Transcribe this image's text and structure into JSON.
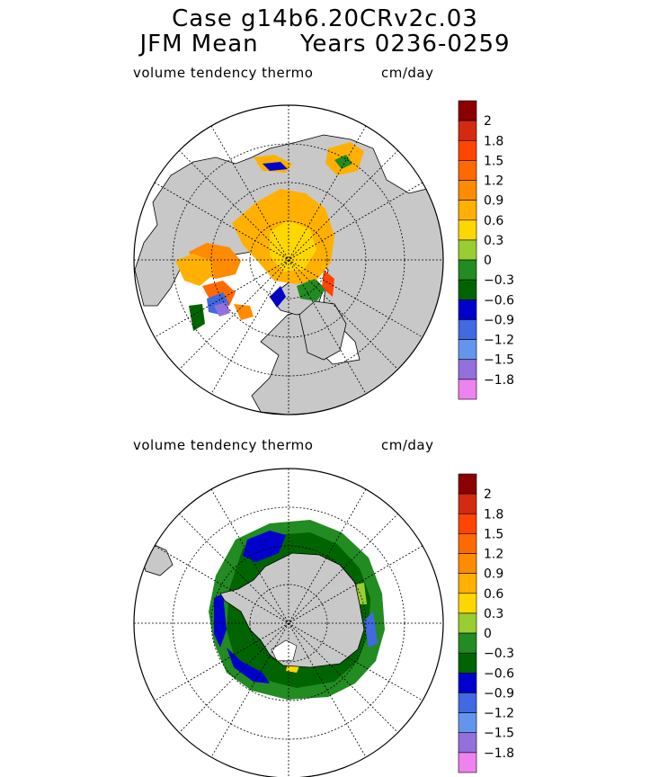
{
  "title_line1": "Case g14b6.20CRv2c.03",
  "title_line2": "JFM Mean     Years 0236-0259",
  "chart_data": [
    {
      "type": "heatmap",
      "projection": "north-polar-stereographic",
      "variable_label": "volume tendency thermo",
      "units": "cm/day",
      "colorbar": {
        "levels": [
          "2",
          "1.8",
          "1.5",
          "1.2",
          "0.9",
          "0.6",
          "0.3",
          "0",
          "−0.3",
          "−0.6",
          "−0.9",
          "−1.2",
          "−1.5",
          "−1.8"
        ],
        "colors": [
          "#8b0000",
          "#d42a0f",
          "#ff4500",
          "#ff6a00",
          "#ff8c00",
          "#ffb000",
          "#ffd700",
          "#9acd32",
          "#228b22",
          "#006400",
          "#0000cd",
          "#4169e1",
          "#6495ed",
          "#9370db",
          "#ee82ee"
        ]
      }
    },
    {
      "type": "heatmap",
      "projection": "south-polar-stereographic",
      "variable_label": "volume tendency thermo",
      "units": "cm/day",
      "colorbar": {
        "levels": [
          "2",
          "1.8",
          "1.5",
          "1.2",
          "0.9",
          "0.6",
          "0.3",
          "0",
          "−0.3",
          "−0.6",
          "−0.9",
          "−1.2",
          "−1.5",
          "−1.8"
        ],
        "colors": [
          "#8b0000",
          "#d42a0f",
          "#ff4500",
          "#ff6a00",
          "#ff8c00",
          "#ffb000",
          "#ffd700",
          "#9acd32",
          "#228b22",
          "#006400",
          "#0000cd",
          "#4169e1",
          "#6495ed",
          "#9370db",
          "#ee82ee"
        ]
      }
    }
  ]
}
